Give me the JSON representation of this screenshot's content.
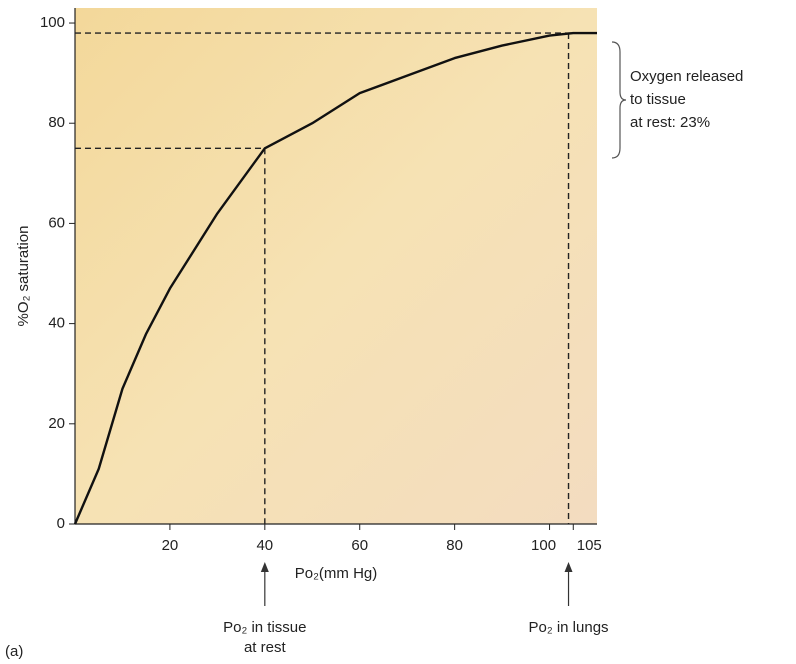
{
  "chart_data": {
    "type": "line",
    "x_label": "Po₂(mm Hg)",
    "y_label": "%O₂ saturation",
    "panel_label": "(a)",
    "x": [
      0,
      5,
      10,
      15,
      20,
      30,
      40,
      50,
      60,
      70,
      80,
      90,
      100,
      105,
      110
    ],
    "series": [
      {
        "color": "#111111",
        "values": [
          0,
          11,
          27,
          38,
          47,
          62,
          75,
          80,
          86,
          89.5,
          93,
          95.5,
          97.5,
          98,
          98
        ]
      }
    ],
    "xlim": [
      0,
      110
    ],
    "ylim": [
      0,
      103
    ],
    "xticks": [
      20,
      40,
      60,
      80,
      100,
      105
    ],
    "yticks": [
      0,
      20,
      40,
      60,
      80,
      100
    ],
    "reference_points": [
      {
        "x": 40,
        "y": 75,
        "label": [
          "Po₂ in tissue",
          "at rest"
        ]
      },
      {
        "x": 104,
        "y": 98,
        "label": [
          "Po₂ in lungs"
        ]
      }
    ],
    "bracket_label": [
      "Oxygen released",
      "to tissue",
      " at rest: 23%"
    ]
  }
}
